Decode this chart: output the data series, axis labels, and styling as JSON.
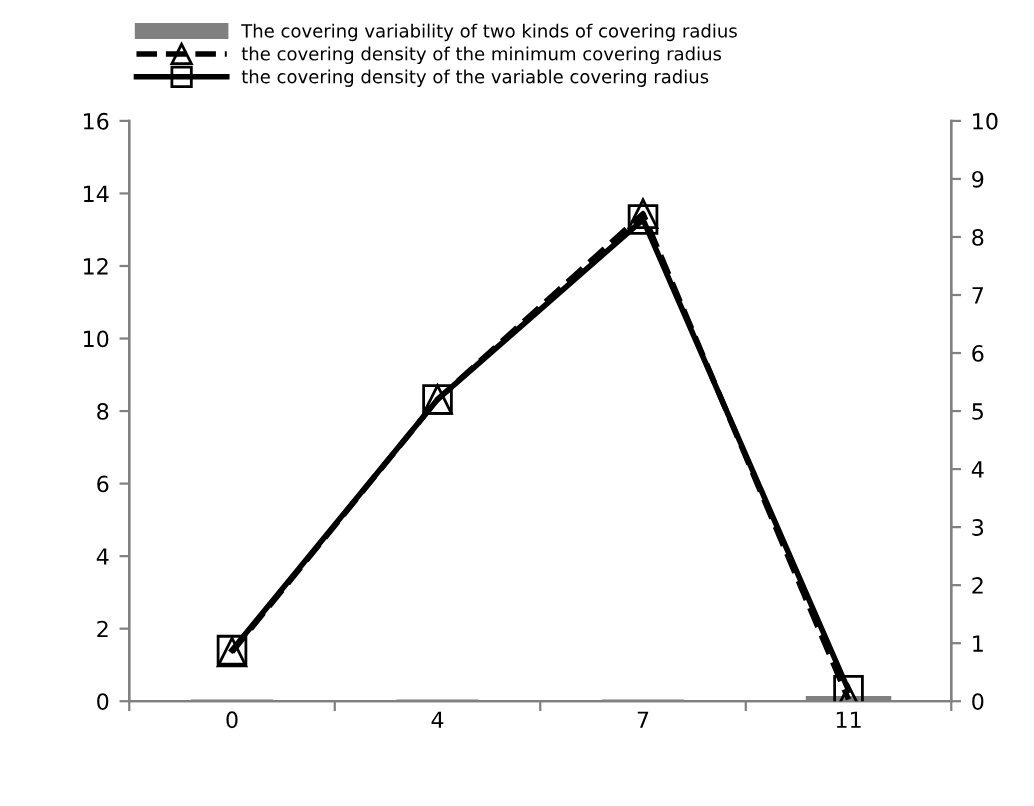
{
  "chart_data": {
    "type": "bar",
    "categories": [
      "0",
      "4",
      "7",
      "11"
    ],
    "series": [
      {
        "name": "The covering variability of two kinds of covering radius",
        "color": "#808080",
        "values": [
          0,
          0,
          0,
          0.1
        ]
      },
      {
        "name": "the covering density of the minimum covering radius",
        "type": "line",
        "axis": "y2",
        "color": "#000000",
        "line_style": "dashed",
        "marker": "triangle",
        "values": [
          0.85,
          5.2,
          8.4,
          0.03
        ]
      },
      {
        "name": "the covering density of the variable covering radius",
        "type": "line",
        "axis": "y2",
        "color": "#000000",
        "line_style": "solid",
        "marker": "square",
        "values": [
          0.88,
          5.2,
          8.3,
          0.19
        ]
      }
    ],
    "ylim": [
      0,
      16
    ],
    "yticks": [
      0,
      2,
      4,
      6,
      8,
      10,
      12,
      14,
      16
    ],
    "y2lim": [
      0,
      10
    ],
    "y2ticks": [
      0,
      1,
      2,
      3,
      4,
      5,
      6,
      7,
      8,
      9,
      10
    ],
    "grid": false,
    "legend": "top left"
  }
}
